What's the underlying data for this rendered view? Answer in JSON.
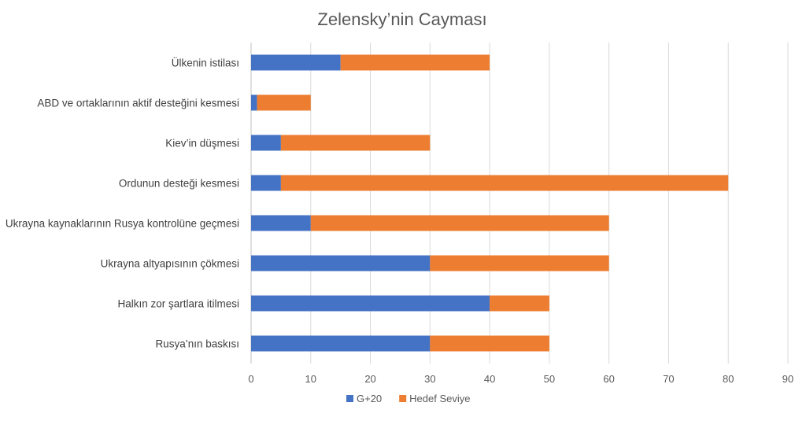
{
  "chart_data": {
    "type": "bar",
    "orientation": "horizontal",
    "stacked": true,
    "title": "Zelensky’nin Cayması",
    "categories": [
      "Ülkenin istilası",
      "ABD ve ortaklarının aktif desteğini kesmesi",
      "Kiev’in düşmesi",
      "Ordunun desteği kesmesi",
      "Ukrayna kaynaklarının Rusya kontrolüne geçmesi",
      "Ukrayna altyapısının çökmesi",
      "Halkın zor şartlara itilmesi",
      "Rusya’nın baskısı"
    ],
    "series": [
      {
        "name": "G+20",
        "color": "#4472c4",
        "values": [
          15,
          1,
          5,
          5,
          10,
          30,
          40,
          30
        ]
      },
      {
        "name": "Hedef Seviye",
        "color": "#ed7d31",
        "values": [
          25,
          9,
          25,
          75,
          50,
          30,
          10,
          20
        ]
      }
    ],
    "xlim": [
      0,
      90
    ],
    "xticks": [
      "0",
      "10",
      "20",
      "30",
      "40",
      "50",
      "60",
      "70",
      "80",
      "90"
    ],
    "grid": true,
    "legend_position": "bottom"
  }
}
